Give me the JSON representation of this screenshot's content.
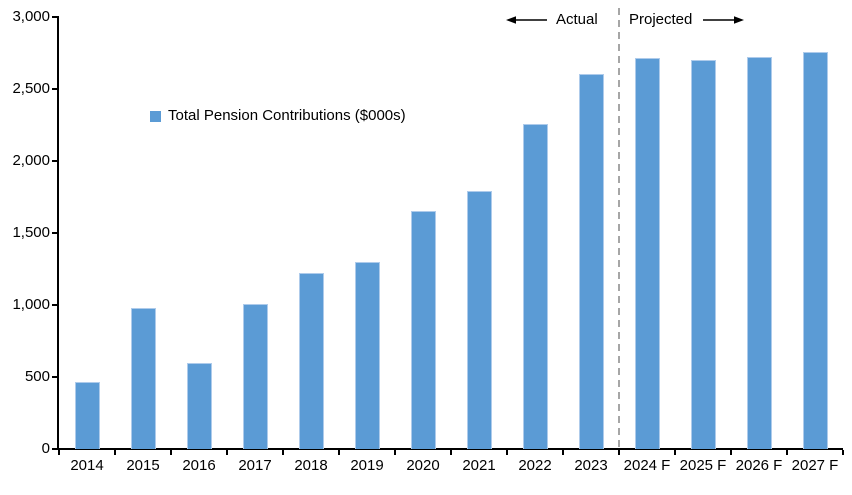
{
  "chart_data": {
    "type": "bar",
    "title": "",
    "xlabel": "",
    "ylabel": "",
    "categories": [
      "2014",
      "2015",
      "2016",
      "2017",
      "2018",
      "2019",
      "2020",
      "2021",
      "2022",
      "2023",
      "2024 F",
      "2025 F",
      "2026 F",
      "2027 F"
    ],
    "values": [
      465,
      980,
      600,
      1005,
      1220,
      1300,
      1655,
      1790,
      2255,
      2605,
      2715,
      2700,
      2725,
      2755
    ],
    "series_name": "Total Pension Contributions ($000s)",
    "ylim": [
      0,
      3000
    ],
    "ytick_interval": 500,
    "yticks": [
      0,
      500,
      1000,
      1500,
      2000,
      2500,
      3000
    ],
    "ytick_labels": [
      "0",
      "500",
      "1,000",
      "1,500",
      "2,000",
      "2,500",
      "3,000"
    ],
    "grid": false,
    "legend_position": "inside-upper-left",
    "bar_color": "#5B9BD5",
    "bar_edge_color": "#AECBEB",
    "axis_color": "#000000",
    "divider": {
      "after_category": "2023",
      "color": "#A6A6A6",
      "style": "dashed"
    }
  },
  "legend": {
    "label": "Total Pension Contributions ($000s)"
  },
  "header": {
    "actual_label": "Actual",
    "projected_label": "Projected"
  }
}
